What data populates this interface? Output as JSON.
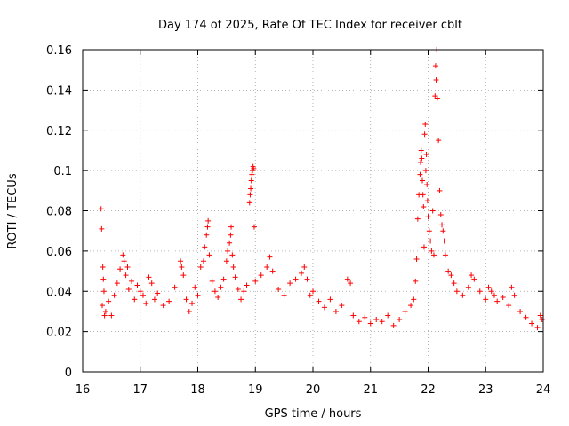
{
  "chart_data": {
    "type": "scatter",
    "title": "Day 174 of 2025, Rate Of TEC Index for receiver cblt",
    "xlabel": "GPS time / hours",
    "ylabel": "ROTI / TECUs",
    "xlim": [
      16,
      24
    ],
    "ylim": [
      0,
      0.16
    ],
    "x_ticks": [
      "16",
      "17",
      "18",
      "19",
      "20",
      "21",
      "22",
      "23",
      "24"
    ],
    "y_ticks": [
      "0",
      "0.02",
      "0.04",
      "0.06",
      "0.08",
      "0.1",
      "0.12",
      "0.14",
      "0.16"
    ],
    "grid": true,
    "marker": "+",
    "color": "#ff0000",
    "series": [
      {
        "name": "ROTI",
        "points": [
          [
            16.32,
            0.081
          ],
          [
            16.33,
            0.071
          ],
          [
            16.35,
            0.052
          ],
          [
            16.36,
            0.046
          ],
          [
            16.37,
            0.04
          ],
          [
            16.34,
            0.033
          ],
          [
            16.38,
            0.028
          ],
          [
            16.4,
            0.03
          ],
          [
            16.45,
            0.035
          ],
          [
            16.5,
            0.028
          ],
          [
            16.55,
            0.038
          ],
          [
            16.6,
            0.044
          ],
          [
            16.65,
            0.051
          ],
          [
            16.7,
            0.058
          ],
          [
            16.72,
            0.055
          ],
          [
            16.75,
            0.048
          ],
          [
            16.78,
            0.052
          ],
          [
            16.8,
            0.041
          ],
          [
            16.85,
            0.045
          ],
          [
            16.9,
            0.036
          ],
          [
            16.95,
            0.043
          ],
          [
            17.0,
            0.04
          ],
          [
            17.05,
            0.038
          ],
          [
            17.1,
            0.034
          ],
          [
            17.15,
            0.047
          ],
          [
            17.2,
            0.044
          ],
          [
            17.25,
            0.036
          ],
          [
            17.3,
            0.039
          ],
          [
            17.4,
            0.033
          ],
          [
            17.5,
            0.035
          ],
          [
            17.6,
            0.042
          ],
          [
            17.7,
            0.055
          ],
          [
            17.72,
            0.052
          ],
          [
            17.75,
            0.048
          ],
          [
            17.8,
            0.036
          ],
          [
            17.85,
            0.03
          ],
          [
            17.9,
            0.034
          ],
          [
            17.95,
            0.042
          ],
          [
            18.0,
            0.038
          ],
          [
            18.05,
            0.052
          ],
          [
            18.1,
            0.055
          ],
          [
            18.12,
            0.062
          ],
          [
            18.15,
            0.068
          ],
          [
            18.17,
            0.072
          ],
          [
            18.18,
            0.075
          ],
          [
            18.2,
            0.058
          ],
          [
            18.25,
            0.045
          ],
          [
            18.3,
            0.04
          ],
          [
            18.35,
            0.037
          ],
          [
            18.4,
            0.042
          ],
          [
            18.45,
            0.046
          ],
          [
            18.5,
            0.055
          ],
          [
            18.52,
            0.06
          ],
          [
            18.55,
            0.064
          ],
          [
            18.57,
            0.068
          ],
          [
            18.58,
            0.072
          ],
          [
            18.6,
            0.058
          ],
          [
            18.62,
            0.052
          ],
          [
            18.65,
            0.047
          ],
          [
            18.7,
            0.041
          ],
          [
            18.75,
            0.036
          ],
          [
            18.8,
            0.04
          ],
          [
            18.85,
            0.043
          ],
          [
            18.9,
            0.084
          ],
          [
            18.91,
            0.088
          ],
          [
            18.92,
            0.091
          ],
          [
            18.93,
            0.095
          ],
          [
            18.94,
            0.098
          ],
          [
            18.95,
            0.1
          ],
          [
            18.96,
            0.102
          ],
          [
            18.97,
            0.101
          ],
          [
            18.98,
            0.072
          ],
          [
            19.0,
            0.045
          ],
          [
            19.1,
            0.048
          ],
          [
            19.2,
            0.052
          ],
          [
            19.25,
            0.057
          ],
          [
            19.3,
            0.05
          ],
          [
            19.4,
            0.041
          ],
          [
            19.5,
            0.038
          ],
          [
            19.6,
            0.044
          ],
          [
            19.7,
            0.046
          ],
          [
            19.8,
            0.049
          ],
          [
            19.85,
            0.052
          ],
          [
            19.9,
            0.046
          ],
          [
            19.95,
            0.038
          ],
          [
            20.0,
            0.04
          ],
          [
            20.1,
            0.035
          ],
          [
            20.2,
            0.032
          ],
          [
            20.3,
            0.036
          ],
          [
            20.4,
            0.03
          ],
          [
            20.5,
            0.033
          ],
          [
            20.6,
            0.046
          ],
          [
            20.65,
            0.044
          ],
          [
            20.7,
            0.028
          ],
          [
            20.8,
            0.025
          ],
          [
            20.9,
            0.027
          ],
          [
            21.0,
            0.024
          ],
          [
            21.1,
            0.026
          ],
          [
            21.2,
            0.025
          ],
          [
            21.3,
            0.028
          ],
          [
            21.4,
            0.023
          ],
          [
            21.5,
            0.026
          ],
          [
            21.6,
            0.03
          ],
          [
            21.7,
            0.033
          ],
          [
            21.75,
            0.036
          ],
          [
            21.78,
            0.045
          ],
          [
            21.8,
            0.056
          ],
          [
            21.82,
            0.076
          ],
          [
            21.84,
            0.088
          ],
          [
            21.86,
            0.098
          ],
          [
            21.87,
            0.104
          ],
          [
            21.88,
            0.11
          ],
          [
            21.89,
            0.106
          ],
          [
            21.9,
            0.095
          ],
          [
            21.91,
            0.088
          ],
          [
            21.92,
            0.082
          ],
          [
            21.93,
            0.062
          ],
          [
            21.94,
            0.118
          ],
          [
            21.95,
            0.123
          ],
          [
            21.96,
            0.1
          ],
          [
            21.97,
            0.108
          ],
          [
            21.98,
            0.093
          ],
          [
            21.99,
            0.085
          ],
          [
            22.0,
            0.077
          ],
          [
            22.02,
            0.07
          ],
          [
            22.04,
            0.065
          ],
          [
            22.06,
            0.06
          ],
          [
            22.08,
            0.08
          ],
          [
            22.1,
            0.058
          ],
          [
            22.12,
            0.137
          ],
          [
            22.13,
            0.152
          ],
          [
            22.14,
            0.145
          ],
          [
            22.15,
            0.16
          ],
          [
            22.16,
            0.136
          ],
          [
            22.18,
            0.115
          ],
          [
            22.2,
            0.09
          ],
          [
            22.22,
            0.078
          ],
          [
            22.24,
            0.073
          ],
          [
            22.26,
            0.07
          ],
          [
            22.28,
            0.065
          ],
          [
            22.3,
            0.058
          ],
          [
            22.35,
            0.05
          ],
          [
            22.4,
            0.048
          ],
          [
            22.45,
            0.044
          ],
          [
            22.5,
            0.04
          ],
          [
            22.6,
            0.038
          ],
          [
            22.7,
            0.042
          ],
          [
            22.75,
            0.048
          ],
          [
            22.8,
            0.046
          ],
          [
            22.9,
            0.04
          ],
          [
            23.0,
            0.036
          ],
          [
            23.05,
            0.042
          ],
          [
            23.1,
            0.04
          ],
          [
            23.15,
            0.038
          ],
          [
            23.2,
            0.035
          ],
          [
            23.3,
            0.037
          ],
          [
            23.4,
            0.033
          ],
          [
            23.45,
            0.042
          ],
          [
            23.5,
            0.038
          ],
          [
            23.6,
            0.03
          ],
          [
            23.7,
            0.027
          ],
          [
            23.8,
            0.024
          ],
          [
            23.9,
            0.022
          ],
          [
            23.95,
            0.028
          ],
          [
            23.98,
            0.026
          ]
        ]
      }
    ]
  }
}
